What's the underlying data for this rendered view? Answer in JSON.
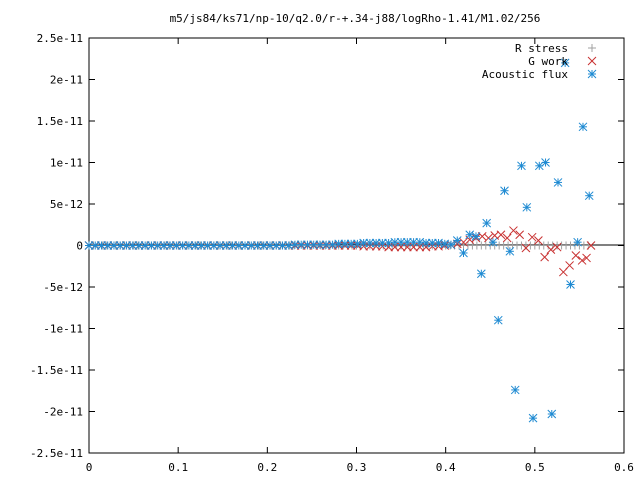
{
  "chart_data": {
    "type": "scatter",
    "title": "m5/js84/ks71/np-10/q2.0/r-+.34-j88/logRho-1.41/M1.02/256",
    "xlabel": "",
    "ylabel": "",
    "xlim": [
      0,
      0.6
    ],
    "ylim": [
      -2.5e-11,
      2.5e-11
    ],
    "grid": false,
    "legend_position": "top-right",
    "x_ticks": [
      {
        "value": 0,
        "label": "0"
      },
      {
        "value": 0.1,
        "label": "0.1"
      },
      {
        "value": 0.2,
        "label": "0.2"
      },
      {
        "value": 0.3,
        "label": "0.3"
      },
      {
        "value": 0.4,
        "label": "0.4"
      },
      {
        "value": 0.5,
        "label": "0.5"
      },
      {
        "value": 0.6,
        "label": "0.6"
      }
    ],
    "y_ticks": [
      {
        "value": 2.5e-11,
        "label": "2.5e-11"
      },
      {
        "value": 2e-11,
        "label": "2e-11"
      },
      {
        "value": 1.5e-11,
        "label": "1.5e-11"
      },
      {
        "value": 1e-11,
        "label": "1e-11"
      },
      {
        "value": 5e-12,
        "label": "5e-12"
      },
      {
        "value": 0,
        "label": "0"
      },
      {
        "value": -5e-12,
        "label": "-5e-12"
      },
      {
        "value": -1e-11,
        "label": "-1e-11"
      },
      {
        "value": -1.5e-11,
        "label": "-1.5e-11"
      },
      {
        "value": -2e-11,
        "label": "-2e-11"
      },
      {
        "value": -2.5e-11,
        "label": "-2.5e-11"
      }
    ],
    "series": [
      {
        "name": "R stress",
        "marker": "plus",
        "color": "#a0a0a0",
        "points": [
          [
            0.0,
            0
          ],
          [
            0.005,
            0
          ],
          [
            0.01,
            0
          ],
          [
            0.015,
            0
          ],
          [
            0.02,
            0
          ],
          [
            0.025,
            0
          ],
          [
            0.03,
            0
          ],
          [
            0.035,
            0
          ],
          [
            0.04,
            0
          ],
          [
            0.045,
            0
          ],
          [
            0.05,
            0
          ],
          [
            0.055,
            0
          ],
          [
            0.06,
            0
          ],
          [
            0.065,
            0
          ],
          [
            0.07,
            0
          ],
          [
            0.075,
            0
          ],
          [
            0.08,
            0
          ],
          [
            0.085,
            0
          ],
          [
            0.09,
            0
          ],
          [
            0.095,
            0
          ],
          [
            0.1,
            0
          ],
          [
            0.105,
            0
          ],
          [
            0.11,
            0
          ],
          [
            0.115,
            0
          ],
          [
            0.12,
            0
          ],
          [
            0.125,
            0
          ],
          [
            0.13,
            0
          ],
          [
            0.135,
            0
          ],
          [
            0.14,
            0
          ],
          [
            0.145,
            0
          ],
          [
            0.15,
            0
          ],
          [
            0.155,
            0
          ],
          [
            0.16,
            0
          ],
          [
            0.165,
            0
          ],
          [
            0.17,
            0
          ],
          [
            0.175,
            0
          ],
          [
            0.18,
            0
          ],
          [
            0.185,
            0
          ],
          [
            0.19,
            0
          ],
          [
            0.195,
            0
          ],
          [
            0.2,
            0
          ],
          [
            0.205,
            0
          ],
          [
            0.21,
            0
          ],
          [
            0.215,
            0
          ],
          [
            0.22,
            0
          ],
          [
            0.225,
            0
          ],
          [
            0.23,
            0
          ],
          [
            0.235,
            0
          ],
          [
            0.24,
            0
          ],
          [
            0.245,
            0
          ],
          [
            0.25,
            0
          ],
          [
            0.255,
            0
          ],
          [
            0.26,
            0
          ],
          [
            0.265,
            0
          ],
          [
            0.27,
            0
          ],
          [
            0.275,
            0
          ],
          [
            0.28,
            0
          ],
          [
            0.285,
            0
          ],
          [
            0.29,
            0
          ],
          [
            0.295,
            0
          ],
          [
            0.3,
            0
          ],
          [
            0.305,
            0
          ],
          [
            0.31,
            0
          ],
          [
            0.315,
            0
          ],
          [
            0.32,
            0
          ],
          [
            0.325,
            0
          ],
          [
            0.33,
            0
          ],
          [
            0.335,
            0
          ],
          [
            0.34,
            0
          ],
          [
            0.345,
            0
          ],
          [
            0.35,
            0
          ],
          [
            0.355,
            0
          ],
          [
            0.36,
            0
          ],
          [
            0.365,
            0
          ],
          [
            0.37,
            0
          ],
          [
            0.375,
            0
          ],
          [
            0.38,
            0
          ],
          [
            0.385,
            0
          ],
          [
            0.39,
            0
          ],
          [
            0.395,
            0
          ],
          [
            0.4,
            0
          ],
          [
            0.405,
            0
          ],
          [
            0.41,
            0
          ],
          [
            0.415,
            0
          ],
          [
            0.42,
            0
          ],
          [
            0.425,
            0
          ],
          [
            0.43,
            0
          ],
          [
            0.435,
            0
          ],
          [
            0.44,
            0
          ],
          [
            0.445,
            0
          ],
          [
            0.45,
            0
          ],
          [
            0.455,
            0
          ],
          [
            0.46,
            0
          ],
          [
            0.465,
            0
          ],
          [
            0.47,
            0
          ],
          [
            0.475,
            0
          ],
          [
            0.48,
            0
          ],
          [
            0.485,
            0
          ],
          [
            0.49,
            0
          ],
          [
            0.495,
            0
          ],
          [
            0.5,
            0
          ],
          [
            0.505,
            0
          ],
          [
            0.51,
            0
          ],
          [
            0.515,
            0
          ],
          [
            0.52,
            0
          ],
          [
            0.525,
            0
          ],
          [
            0.53,
            0
          ],
          [
            0.535,
            0
          ],
          [
            0.54,
            0
          ],
          [
            0.545,
            0
          ],
          [
            0.55,
            0
          ],
          [
            0.555,
            0
          ],
          [
            0.56,
            0
          ]
        ]
      },
      {
        "name": "G work",
        "marker": "cross",
        "color": "#c83030",
        "points": [
          [
            0.0,
            0
          ],
          [
            0.007,
            0
          ],
          [
            0.014,
            0
          ],
          [
            0.021,
            0
          ],
          [
            0.028,
            0
          ],
          [
            0.035,
            0
          ],
          [
            0.042,
            0
          ],
          [
            0.049,
            0
          ],
          [
            0.056,
            0
          ],
          [
            0.063,
            0
          ],
          [
            0.07,
            0
          ],
          [
            0.077,
            0
          ],
          [
            0.084,
            0
          ],
          [
            0.091,
            0
          ],
          [
            0.098,
            0
          ],
          [
            0.105,
            0
          ],
          [
            0.112,
            0
          ],
          [
            0.119,
            0
          ],
          [
            0.126,
            0
          ],
          [
            0.133,
            0
          ],
          [
            0.14,
            0
          ],
          [
            0.147,
            0
          ],
          [
            0.154,
            0
          ],
          [
            0.161,
            0
          ],
          [
            0.168,
            0
          ],
          [
            0.175,
            0
          ],
          [
            0.182,
            0
          ],
          [
            0.189,
            0
          ],
          [
            0.196,
            0
          ],
          [
            0.203,
            0
          ],
          [
            0.21,
            0
          ],
          [
            0.217,
            0
          ],
          [
            0.224,
            0
          ],
          [
            0.231,
            0
          ],
          [
            0.238,
            0
          ],
          [
            0.245,
            0
          ],
          [
            0.252,
            0
          ],
          [
            0.259,
            0
          ],
          [
            0.266,
            0
          ],
          [
            0.273,
            0
          ],
          [
            0.28,
            0
          ],
          [
            0.287,
            0
          ],
          [
            0.294,
            0
          ],
          [
            0.301,
            0
          ],
          [
            0.308,
            -1e-13
          ],
          [
            0.315,
            -1e-13
          ],
          [
            0.322,
            -1e-13
          ],
          [
            0.329,
            -1e-13
          ],
          [
            0.336,
            -2e-13
          ],
          [
            0.343,
            -2e-13
          ],
          [
            0.35,
            -2e-13
          ],
          [
            0.357,
            -2e-13
          ],
          [
            0.364,
            -2e-13
          ],
          [
            0.371,
            -2e-13
          ],
          [
            0.378,
            -2e-13
          ],
          [
            0.385,
            -1e-13
          ],
          [
            0.392,
            -1e-13
          ],
          [
            0.399,
            0
          ],
          [
            0.406,
            1e-13
          ],
          [
            0.413,
            2e-13
          ],
          [
            0.42,
            4e-13
          ],
          [
            0.427,
            7e-13
          ],
          [
            0.434,
            9e-13
          ],
          [
            0.441,
            1.1e-12
          ],
          [
            0.448,
            9e-13
          ],
          [
            0.455,
            1.2e-12
          ],
          [
            0.462,
            1.3e-12
          ],
          [
            0.469,
            9e-13
          ],
          [
            0.476,
            1.8e-12
          ],
          [
            0.483,
            1.3e-12
          ],
          [
            0.49,
            -3e-13
          ],
          [
            0.497,
            1e-12
          ],
          [
            0.504,
            6e-13
          ],
          [
            0.511,
            -1.4e-12
          ],
          [
            0.518,
            -5e-13
          ],
          [
            0.525,
            -2e-13
          ],
          [
            0.532,
            -3.2e-12
          ],
          [
            0.539,
            -2.4e-12
          ],
          [
            0.546,
            -1.2e-12
          ],
          [
            0.553,
            -1.8e-12
          ],
          [
            0.558,
            -1.5e-12
          ],
          [
            0.563,
            0
          ]
        ]
      },
      {
        "name": "Acoustic flux",
        "marker": "star",
        "color": "#1e8ad2",
        "points": [
          [
            0.0,
            0
          ],
          [
            0.007,
            0
          ],
          [
            0.014,
            0
          ],
          [
            0.021,
            0
          ],
          [
            0.028,
            0
          ],
          [
            0.035,
            0
          ],
          [
            0.042,
            0
          ],
          [
            0.049,
            0
          ],
          [
            0.056,
            0
          ],
          [
            0.063,
            0
          ],
          [
            0.07,
            0
          ],
          [
            0.077,
            0
          ],
          [
            0.084,
            0
          ],
          [
            0.091,
            0
          ],
          [
            0.098,
            0
          ],
          [
            0.105,
            0
          ],
          [
            0.112,
            0
          ],
          [
            0.119,
            0
          ],
          [
            0.126,
            0
          ],
          [
            0.133,
            0
          ],
          [
            0.14,
            0
          ],
          [
            0.147,
            0
          ],
          [
            0.154,
            0
          ],
          [
            0.161,
            0
          ],
          [
            0.168,
            0
          ],
          [
            0.175,
            0
          ],
          [
            0.182,
            0
          ],
          [
            0.189,
            0
          ],
          [
            0.196,
            0
          ],
          [
            0.203,
            0
          ],
          [
            0.21,
            0
          ],
          [
            0.217,
            0
          ],
          [
            0.224,
            0
          ],
          [
            0.231,
            1e-13
          ],
          [
            0.238,
            1e-13
          ],
          [
            0.245,
            1e-13
          ],
          [
            0.252,
            1e-13
          ],
          [
            0.259,
            1e-13
          ],
          [
            0.266,
            1e-13
          ],
          [
            0.273,
            1e-13
          ],
          [
            0.28,
            2e-13
          ],
          [
            0.287,
            2e-13
          ],
          [
            0.294,
            2e-13
          ],
          [
            0.301,
            2e-13
          ],
          [
            0.308,
            3e-13
          ],
          [
            0.315,
            3e-13
          ],
          [
            0.322,
            3e-13
          ],
          [
            0.329,
            3e-13
          ],
          [
            0.336,
            3e-13
          ],
          [
            0.343,
            4e-13
          ],
          [
            0.35,
            4e-13
          ],
          [
            0.357,
            4e-13
          ],
          [
            0.364,
            4e-13
          ],
          [
            0.371,
            4e-13
          ],
          [
            0.378,
            3e-13
          ],
          [
            0.385,
            3e-13
          ],
          [
            0.392,
            3e-13
          ],
          [
            0.399,
            2e-13
          ],
          [
            0.406,
            1e-13
          ],
          [
            0.413,
            6e-13
          ],
          [
            0.42,
            -9e-13
          ],
          [
            0.427,
            1.3e-12
          ],
          [
            0.434,
            1.1e-12
          ],
          [
            0.44,
            -3.4e-12
          ],
          [
            0.446,
            2.7e-12
          ],
          [
            0.453,
            4e-13
          ],
          [
            0.459,
            -9e-12
          ],
          [
            0.466,
            6.6e-12
          ],
          [
            0.472,
            -7e-13
          ],
          [
            0.478,
            -1.74e-11
          ],
          [
            0.485,
            9.6e-12
          ],
          [
            0.491,
            4.6e-12
          ],
          [
            0.498,
            -2.08e-11
          ],
          [
            0.505,
            9.6e-12
          ],
          [
            0.512,
            1e-11
          ],
          [
            0.519,
            -2.03e-11
          ],
          [
            0.526,
            7.6e-12
          ],
          [
            0.534,
            2.2e-11
          ],
          [
            0.54,
            -4.7e-12
          ],
          [
            0.548,
            4e-13
          ],
          [
            0.554,
            1.43e-11
          ],
          [
            0.561,
            6e-12
          ]
        ]
      }
    ]
  }
}
